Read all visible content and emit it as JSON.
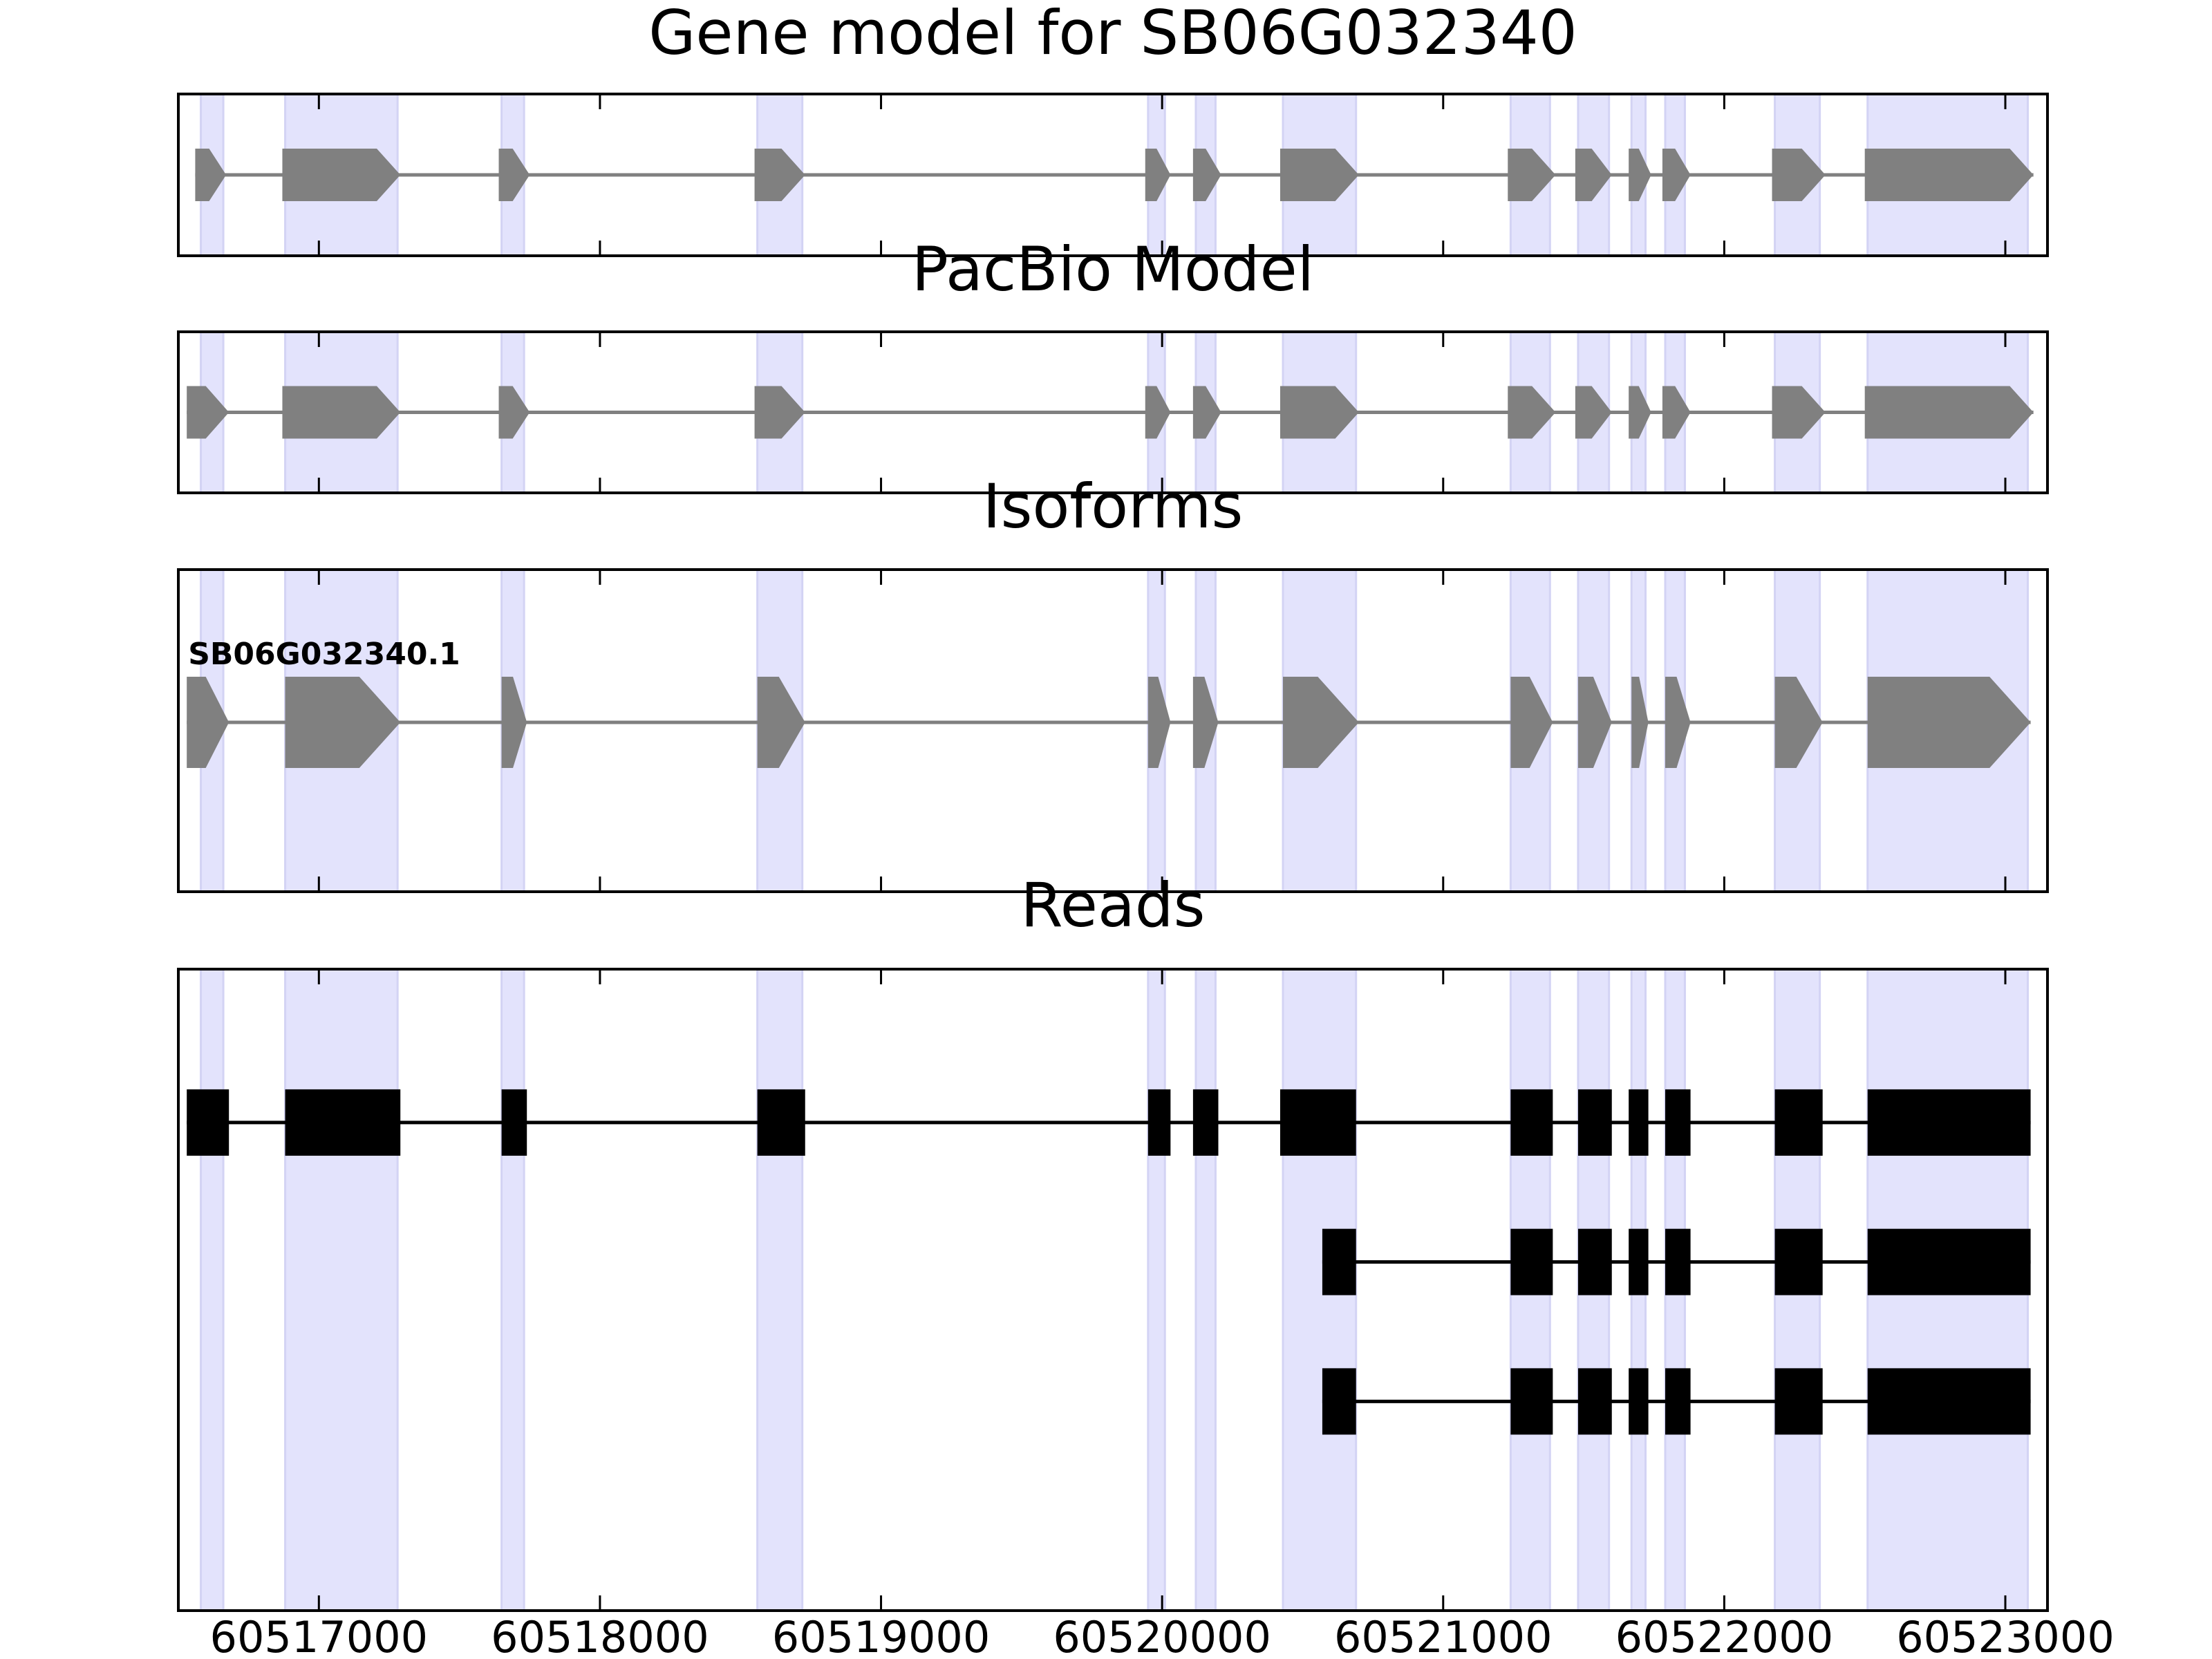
{
  "chart_data": {
    "type": "gene-structure",
    "x_range": [
      60516500,
      60523150
    ],
    "x_ticks": [
      60517000,
      60518000,
      60519000,
      60520000,
      60521000,
      60522000,
      60523000
    ],
    "x_tick_labels": [
      "60517000",
      "60518000",
      "60519000",
      "60520000",
      "60521000",
      "60522000",
      "60523000"
    ],
    "colors": {
      "feature": "#808080",
      "read": "#000000",
      "highlight": "#e3e3fc",
      "highlight_edge": "#d3d3f4",
      "axes": "#000000"
    },
    "highlight_regions": [
      [
        60516580,
        60516660
      ],
      [
        60516880,
        60517280
      ],
      [
        60517650,
        60517730
      ],
      [
        60518560,
        60518720
      ],
      [
        60519950,
        60520010
      ],
      [
        60520120,
        60520190
      ],
      [
        60520430,
        60520690
      ],
      [
        60521240,
        60521380
      ],
      [
        60521480,
        60521590
      ],
      [
        60521670,
        60521720
      ],
      [
        60521790,
        60521860
      ],
      [
        60522180,
        60522340
      ],
      [
        60522510,
        60523080
      ]
    ],
    "panels": [
      {
        "title": "Gene model for SB06G032340",
        "kind": "model",
        "models": [
          {
            "label": "",
            "exons": [
              [
                60516560,
                60516670
              ],
              [
                60516870,
                60517290
              ],
              [
                60517640,
                60517750
              ],
              [
                60518550,
                60518730
              ],
              [
                60519940,
                60520030
              ],
              [
                60520110,
                60520210
              ],
              [
                60520420,
                60520700
              ],
              [
                60521230,
                60521400
              ],
              [
                60521470,
                60521600
              ],
              [
                60521660,
                60521740
              ],
              [
                60521780,
                60521880
              ],
              [
                60522170,
                60522360
              ],
              [
                60522500,
                60523100
              ]
            ]
          }
        ]
      },
      {
        "title": "PacBio Model",
        "kind": "model",
        "models": [
          {
            "label": "",
            "exons": [
              [
                60516530,
                60516680
              ],
              [
                60516870,
                60517290
              ],
              [
                60517640,
                60517750
              ],
              [
                60518550,
                60518730
              ],
              [
                60519940,
                60520030
              ],
              [
                60520110,
                60520210
              ],
              [
                60520420,
                60520700
              ],
              [
                60521230,
                60521400
              ],
              [
                60521470,
                60521600
              ],
              [
                60521660,
                60521740
              ],
              [
                60521780,
                60521880
              ],
              [
                60522170,
                60522360
              ],
              [
                60522500,
                60523100
              ]
            ]
          }
        ]
      },
      {
        "title": "Isoforms",
        "kind": "model",
        "models": [
          {
            "label": "SB06G032340.1",
            "exons": [
              [
                60516530,
                60516680
              ],
              [
                60516880,
                60517290
              ],
              [
                60517650,
                60517740
              ],
              [
                60518560,
                60518730
              ],
              [
                60519950,
                60520030
              ],
              [
                60520110,
                60520200
              ],
              [
                60520430,
                60520700
              ],
              [
                60521240,
                60521390
              ],
              [
                60521480,
                60521600
              ],
              [
                60521670,
                60521730
              ],
              [
                60521790,
                60521880
              ],
              [
                60522180,
                60522350
              ],
              [
                60522510,
                60523090
              ]
            ]
          }
        ]
      },
      {
        "title": "Reads",
        "kind": "reads",
        "models": [
          {
            "label": "",
            "exons": [
              [
                60516530,
                60516680
              ],
              [
                60516880,
                60517290
              ],
              [
                60517650,
                60517740
              ],
              [
                60518560,
                60518730
              ],
              [
                60519950,
                60520030
              ],
              [
                60520110,
                60520200
              ],
              [
                60520420,
                60520690
              ],
              [
                60521240,
                60521390
              ],
              [
                60521480,
                60521600
              ],
              [
                60521660,
                60521730
              ],
              [
                60521790,
                60521880
              ],
              [
                60522180,
                60522350
              ],
              [
                60522510,
                60523090
              ]
            ]
          },
          {
            "label": "",
            "exons": [
              [
                60520570,
                60520690
              ],
              [
                60521240,
                60521390
              ],
              [
                60521480,
                60521600
              ],
              [
                60521660,
                60521730
              ],
              [
                60521790,
                60521880
              ],
              [
                60522180,
                60522350
              ],
              [
                60522510,
                60523090
              ]
            ]
          },
          {
            "label": "",
            "exons": [
              [
                60520570,
                60520690
              ],
              [
                60521240,
                60521390
              ],
              [
                60521480,
                60521600
              ],
              [
                60521660,
                60521730
              ],
              [
                60521790,
                60521880
              ],
              [
                60522180,
                60522350
              ],
              [
                60522510,
                60523090
              ]
            ]
          }
        ]
      }
    ]
  }
}
